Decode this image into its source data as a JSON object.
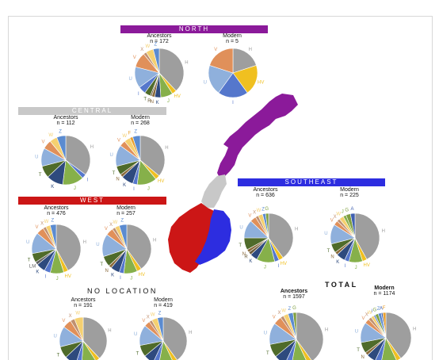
{
  "colors": {
    "north": "#8b1a9a",
    "central": "#c8c8c8",
    "west": "#cc1616",
    "southeast": "#2d2de0",
    "H": "#9e9e9e",
    "HV": "#f0c020",
    "I": "#5577cc",
    "J": "#86b04a",
    "K": "#2e4a7e",
    "N": "#8a6a3a",
    "T": "#4f6b2a",
    "U": "#8fb0dc",
    "V": "#e0905a",
    "W": "#f5d070",
    "X": "#c09070",
    "Z": "#5b8bd0",
    "G": "#7f9f3f",
    "A": "#4060b0",
    "F": "#e8a030",
    "LM": "#606060",
    "R": "#6a5a3a"
  },
  "banners": {
    "north": "NORTH",
    "central": "CENTRAL",
    "west": "WEST",
    "southeast": "SOUTHEAST"
  },
  "section_titles": {
    "no_location": "NO LOCATION",
    "total": "TOTAL"
  },
  "panels": {
    "north_ancestors": {
      "title": "Ancestors",
      "n": "n = 172"
    },
    "north_modern": {
      "title": "Modern",
      "n": "n = 5"
    },
    "central_ancestors": {
      "title": "Ancestors",
      "n": "n = 112"
    },
    "central_modern": {
      "title": "Modern",
      "n": "n = 268"
    },
    "west_ancestors": {
      "title": "Ancestors",
      "n": "n = 476"
    },
    "west_modern": {
      "title": "Modern",
      "n": "n = 257"
    },
    "se_ancestors": {
      "title": "Ancestors",
      "n": "n = 636"
    },
    "se_modern": {
      "title": "Modern",
      "n": "n = 225"
    },
    "noloc_ancestors": {
      "title": "Ancestors",
      "n": "n = 191"
    },
    "noloc_modern": {
      "title": "Modern",
      "n": "n = 419"
    },
    "total_ancestors": {
      "title": "Ancestors",
      "n": "n = 1597"
    },
    "total_modern": {
      "title": "Modern",
      "n": "n = 1174"
    }
  },
  "chart_data": [
    {
      "type": "pie",
      "panel": "north_ancestors",
      "labels": [
        "H",
        "HV",
        "J",
        "K",
        "N",
        "R",
        "T",
        "I",
        "U",
        "V",
        "X",
        "W",
        "Z"
      ],
      "values": [
        38,
        3,
        8,
        4,
        2,
        1,
        4,
        5,
        14,
        10,
        2,
        5,
        4
      ]
    },
    {
      "type": "pie",
      "panel": "north_modern",
      "labels": [
        "H",
        "HV",
        "I",
        "U",
        "V"
      ],
      "values": [
        20,
        20,
        20,
        20,
        20
      ]
    },
    {
      "type": "pie",
      "panel": "central_ancestors",
      "labels": [
        "H",
        "I",
        "J",
        "K",
        "T",
        "U",
        "V",
        "W",
        "Z"
      ],
      "values": [
        35,
        3,
        14,
        11,
        8,
        12,
        6,
        5,
        6
      ]
    },
    {
      "type": "pie",
      "panel": "central_modern",
      "labels": [
        "H",
        "HV",
        "J",
        "I",
        "K",
        "N",
        "T",
        "U",
        "V",
        "W",
        "F",
        "Z"
      ],
      "values": [
        36,
        3,
        13,
        3,
        8,
        2,
        6,
        14,
        4,
        4,
        2,
        5
      ]
    },
    {
      "type": "pie",
      "panel": "west_ancestors",
      "labels": [
        "H",
        "HV",
        "J",
        "I",
        "K",
        "LM",
        "T",
        "U",
        "V",
        "X",
        "W",
        "Z"
      ],
      "values": [
        42,
        3,
        9,
        4,
        6,
        2,
        6,
        14,
        5,
        2,
        3,
        4
      ]
    },
    {
      "type": "pie",
      "panel": "west_modern",
      "labels": [
        "H",
        "HV",
        "J",
        "I",
        "K",
        "N",
        "T",
        "U",
        "V",
        "X",
        "W",
        "Z"
      ],
      "values": [
        40,
        3,
        9,
        3,
        6,
        2,
        7,
        15,
        5,
        2,
        3,
        5
      ]
    },
    {
      "type": "pie",
      "panel": "se_ancestors",
      "labels": [
        "H",
        "HV",
        "I",
        "J",
        "K",
        "R",
        "N",
        "T",
        "U",
        "V",
        "X",
        "W",
        "Z",
        "G"
      ],
      "values": [
        40,
        3,
        3,
        12,
        5,
        2,
        2,
        8,
        12,
        4,
        2,
        3,
        2,
        2
      ]
    },
    {
      "type": "pie",
      "panel": "se_modern",
      "labels": [
        "H",
        "HV",
        "J",
        "I",
        "K",
        "N",
        "T",
        "U",
        "V",
        "X",
        "W",
        "J",
        "G",
        "A"
      ],
      "values": [
        42,
        3,
        9,
        3,
        6,
        2,
        6,
        13,
        3,
        2,
        3,
        2,
        3,
        3
      ]
    },
    {
      "type": "pie",
      "panel": "noloc_ancestors",
      "labels": [
        "H",
        "HV",
        "J",
        "I",
        "K",
        "T",
        "U",
        "V",
        "X",
        "W"
      ],
      "values": [
        38,
        3,
        10,
        4,
        8,
        8,
        14,
        6,
        3,
        6
      ]
    },
    {
      "type": "pie",
      "panel": "noloc_modern",
      "labels": [
        "H",
        "HV",
        "J",
        "I",
        "K",
        "T",
        "U",
        "V",
        "X",
        "W",
        "Z"
      ],
      "values": [
        40,
        3,
        10,
        4,
        7,
        8,
        14,
        4,
        2,
        4,
        4
      ]
    },
    {
      "type": "pie",
      "panel": "total_ancestors",
      "labels": [
        "H",
        "HV",
        "J",
        "I",
        "K",
        "T",
        "U",
        "V",
        "X",
        "W",
        "Z",
        "G"
      ],
      "values": [
        40,
        3,
        10,
        4,
        7,
        8,
        13,
        5,
        2,
        3,
        3,
        2
      ]
    },
    {
      "type": "pie",
      "panel": "total_modern",
      "labels": [
        "H",
        "HV",
        "J",
        "I",
        "K",
        "N",
        "T",
        "U",
        "V",
        "X",
        "W",
        "I",
        "G",
        "Z",
        "A",
        "F"
      ],
      "values": [
        40,
        3,
        10,
        4,
        6,
        2,
        7,
        13,
        3,
        2,
        2,
        1,
        2,
        2,
        1,
        2
      ]
    }
  ]
}
